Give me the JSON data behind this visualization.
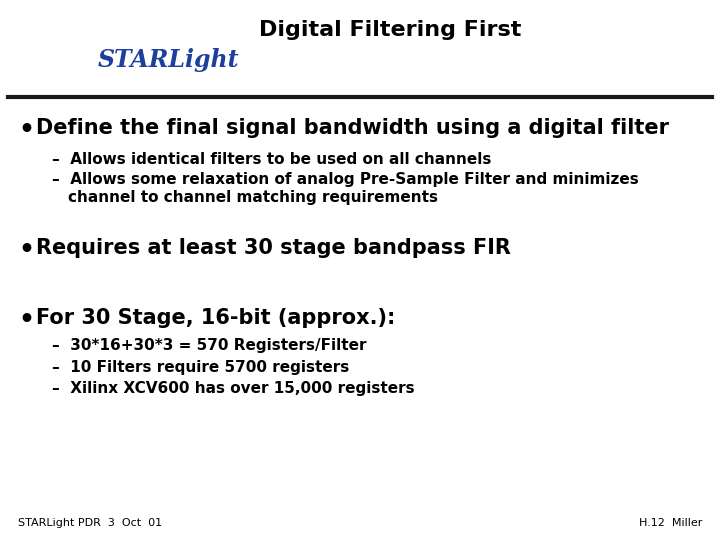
{
  "title": "Digital Filtering First",
  "bg_color": "#ffffff",
  "header_line_color": "#1a1a1a",
  "logo_box_color": "#1e3f9e",
  "logo_text": "STARLight",
  "bullet1": "Define the final signal bandwidth using a digital filter",
  "sub1a": "Allows identical filters to be used on all channels",
  "sub1b_line1": "Allows some relaxation of analog Pre-Sample Filter and minimizes",
  "sub1b_line2": "channel to channel matching requirements",
  "bullet2": "Requires at least 30 stage bandpass FIR",
  "bullet3": "For 30 Stage, 16-bit (approx.):",
  "sub3a": "30*16+30*3 = 570 Registers/Filter",
  "sub3b": "10 Filters require 5700 registers",
  "sub3c": "Xilinx XCV600 has over 15,000 registers",
  "footer_left": "STARLight PDR  3  Oct  01",
  "footer_right": "H.12  Miller",
  "text_color": "#000000",
  "title_fontsize": 16,
  "bullet_fontsize": 15,
  "sub_fontsize": 11,
  "footer_fontsize": 8,
  "logo_fontsize": 17
}
